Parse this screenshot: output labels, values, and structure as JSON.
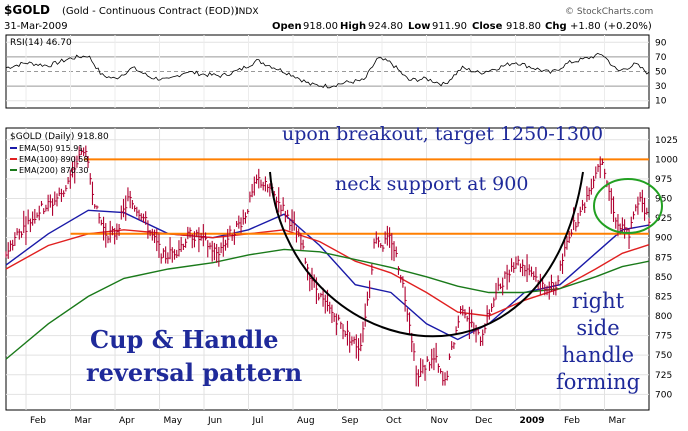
{
  "header": {
    "symbol": "$GOLD",
    "description": "(Gold - Continuous Contract (EOD))",
    "exchange": "INDX",
    "date": "31-Mar-2009",
    "open_label": "Open",
    "open": "918.00",
    "high_label": "High",
    "high": "924.80",
    "low_label": "Low",
    "low": "911.90",
    "close_label": "Close",
    "close": "918.80",
    "chg_label": "Chg",
    "chg": "+1.80 (+0.20%)",
    "watermark": "© StockCharts.com"
  },
  "rsi_panel": {
    "label": "RSI(14) 46.70",
    "ticks": [
      "90",
      "70",
      "50",
      "30",
      "10"
    ]
  },
  "price_panel": {
    "label": "$GOLD (Daily) 918.80",
    "ema": [
      {
        "label": "EMA(50) 915.91",
        "color": "#1a1aa8"
      },
      {
        "label": "EMA(100) 890.58",
        "color": "#e02020"
      },
      {
        "label": "EMA(200) 870.30",
        "color": "#1a7a1a"
      }
    ]
  },
  "annotations": {
    "target": "upon breakout, target 1250-1300",
    "neck": "neck support at 900",
    "pattern_line1": "Cup & Handle",
    "pattern_line2": "reversal pattern",
    "handle_lines": [
      "right",
      "side",
      "handle",
      "forming"
    ]
  },
  "colors": {
    "price_bars": "#b00030",
    "resistance_line": "#ff7f00",
    "annotation_text": "#1f2a9a",
    "handle_circle": "#22a022",
    "cup_curve": "#000000"
  },
  "chart_data": {
    "type": "line",
    "title": "$GOLD (Gold - Continuous Contract (EOD))",
    "x_ticks": [
      "Feb",
      "Mar",
      "Apr",
      "May",
      "Jun",
      "Jul",
      "Aug",
      "Sep",
      "Oct",
      "Nov",
      "Dec",
      "2009",
      "Feb",
      "Mar"
    ],
    "x_tick_month_index": [
      1,
      2,
      3,
      4,
      5,
      6,
      7,
      8,
      9,
      10,
      11,
      12,
      13,
      14
    ],
    "x_range_months": [
      0.55,
      15.0
    ],
    "y_ticks": [
      700,
      725,
      750,
      775,
      800,
      825,
      850,
      875,
      900,
      925,
      950,
      975,
      1000,
      1025
    ],
    "ylim": [
      680,
      1040
    ],
    "price_points": [
      {
        "m": 0.55,
        "v": 880
      },
      {
        "m": 0.8,
        "v": 905
      },
      {
        "m": 1.0,
        "v": 915
      },
      {
        "m": 1.3,
        "v": 935
      },
      {
        "m": 1.6,
        "v": 945
      },
      {
        "m": 1.85,
        "v": 960
      },
      {
        "m": 2.1,
        "v": 990
      },
      {
        "m": 2.3,
        "v": 1015
      },
      {
        "m": 2.45,
        "v": 975
      },
      {
        "m": 2.6,
        "v": 930
      },
      {
        "m": 2.8,
        "v": 905
      },
      {
        "m": 3.0,
        "v": 905
      },
      {
        "m": 3.3,
        "v": 950
      },
      {
        "m": 3.6,
        "v": 930
      },
      {
        "m": 3.85,
        "v": 900
      },
      {
        "m": 4.1,
        "v": 875
      },
      {
        "m": 4.4,
        "v": 885
      },
      {
        "m": 4.7,
        "v": 905
      },
      {
        "m": 5.0,
        "v": 895
      },
      {
        "m": 5.3,
        "v": 880
      },
      {
        "m": 5.6,
        "v": 905
      },
      {
        "m": 5.9,
        "v": 925
      },
      {
        "m": 6.2,
        "v": 975
      },
      {
        "m": 6.5,
        "v": 960
      },
      {
        "m": 6.8,
        "v": 935
      },
      {
        "m": 7.1,
        "v": 905
      },
      {
        "m": 7.4,
        "v": 850
      },
      {
        "m": 7.7,
        "v": 815
      },
      {
        "m": 8.0,
        "v": 795
      },
      {
        "m": 8.3,
        "v": 770
      },
      {
        "m": 8.5,
        "v": 760
      },
      {
        "m": 8.7,
        "v": 830
      },
      {
        "m": 8.85,
        "v": 905
      },
      {
        "m": 9.0,
        "v": 890
      },
      {
        "m": 9.2,
        "v": 900
      },
      {
        "m": 9.4,
        "v": 860
      },
      {
        "m": 9.6,
        "v": 800
      },
      {
        "m": 9.8,
        "v": 720
      },
      {
        "m": 10.0,
        "v": 740
      },
      {
        "m": 10.2,
        "v": 745
      },
      {
        "m": 10.4,
        "v": 710
      },
      {
        "m": 10.6,
        "v": 765
      },
      {
        "m": 10.8,
        "v": 815
      },
      {
        "m": 11.0,
        "v": 790
      },
      {
        "m": 11.2,
        "v": 770
      },
      {
        "m": 11.5,
        "v": 820
      },
      {
        "m": 11.8,
        "v": 855
      },
      {
        "m": 12.0,
        "v": 870
      },
      {
        "m": 12.3,
        "v": 860
      },
      {
        "m": 12.6,
        "v": 840
      },
      {
        "m": 12.9,
        "v": 835
      },
      {
        "m": 13.2,
        "v": 905
      },
      {
        "m": 13.5,
        "v": 935
      },
      {
        "m": 13.8,
        "v": 985
      },
      {
        "m": 13.95,
        "v": 1003
      },
      {
        "m": 14.1,
        "v": 960
      },
      {
        "m": 14.3,
        "v": 915
      },
      {
        "m": 14.55,
        "v": 905
      },
      {
        "m": 14.8,
        "v": 955
      },
      {
        "m": 15.0,
        "v": 919
      }
    ],
    "series": [
      {
        "name": "EMA(50) 915.91",
        "points": [
          {
            "m": 0.55,
            "v": 865
          },
          {
            "m": 1.5,
            "v": 905
          },
          {
            "m": 2.4,
            "v": 935
          },
          {
            "m": 3.2,
            "v": 932
          },
          {
            "m": 4.2,
            "v": 905
          },
          {
            "m": 5.2,
            "v": 900
          },
          {
            "m": 6.0,
            "v": 910
          },
          {
            "m": 6.8,
            "v": 930
          },
          {
            "m": 7.6,
            "v": 890
          },
          {
            "m": 8.4,
            "v": 840
          },
          {
            "m": 9.2,
            "v": 830
          },
          {
            "m": 10.0,
            "v": 790
          },
          {
            "m": 10.7,
            "v": 770
          },
          {
            "m": 11.4,
            "v": 790
          },
          {
            "m": 12.2,
            "v": 830
          },
          {
            "m": 13.0,
            "v": 840
          },
          {
            "m": 13.8,
            "v": 880
          },
          {
            "m": 14.4,
            "v": 910
          },
          {
            "m": 15.0,
            "v": 916
          }
        ]
      },
      {
        "name": "EMA(100) 890.58",
        "points": [
          {
            "m": 0.55,
            "v": 860
          },
          {
            "m": 1.5,
            "v": 890
          },
          {
            "m": 2.4,
            "v": 905
          },
          {
            "m": 3.2,
            "v": 910
          },
          {
            "m": 4.2,
            "v": 905
          },
          {
            "m": 5.2,
            "v": 900
          },
          {
            "m": 6.0,
            "v": 905
          },
          {
            "m": 6.8,
            "v": 910
          },
          {
            "m": 7.6,
            "v": 895
          },
          {
            "m": 8.4,
            "v": 870
          },
          {
            "m": 9.2,
            "v": 855
          },
          {
            "m": 10.0,
            "v": 830
          },
          {
            "m": 10.7,
            "v": 805
          },
          {
            "m": 11.4,
            "v": 800
          },
          {
            "m": 12.2,
            "v": 820
          },
          {
            "m": 13.0,
            "v": 835
          },
          {
            "m": 13.8,
            "v": 860
          },
          {
            "m": 14.4,
            "v": 880
          },
          {
            "m": 15.0,
            "v": 891
          }
        ]
      },
      {
        "name": "EMA(200) 870.30",
        "points": [
          {
            "m": 0.55,
            "v": 745
          },
          {
            "m": 1.5,
            "v": 790
          },
          {
            "m": 2.4,
            "v": 825
          },
          {
            "m": 3.2,
            "v": 848
          },
          {
            "m": 4.2,
            "v": 860
          },
          {
            "m": 5.2,
            "v": 868
          },
          {
            "m": 6.0,
            "v": 878
          },
          {
            "m": 6.8,
            "v": 885
          },
          {
            "m": 7.6,
            "v": 882
          },
          {
            "m": 8.4,
            "v": 872
          },
          {
            "m": 9.2,
            "v": 862
          },
          {
            "m": 10.0,
            "v": 850
          },
          {
            "m": 10.7,
            "v": 838
          },
          {
            "m": 11.4,
            "v": 830
          },
          {
            "m": 12.2,
            "v": 830
          },
          {
            "m": 13.0,
            "v": 835
          },
          {
            "m": 13.8,
            "v": 850
          },
          {
            "m": 14.4,
            "v": 863
          },
          {
            "m": 15.0,
            "v": 870
          }
        ]
      }
    ],
    "horizontal_lines": [
      {
        "value": 1000,
        "from_m": 2.3,
        "to_m": 15.0
      },
      {
        "value": 905,
        "from_m": 2.0,
        "to_m": 15.0
      }
    ],
    "rsi": {
      "ylim": [
        0,
        100
      ],
      "y_ticks": [
        90,
        70,
        50,
        30,
        10
      ],
      "values": [
        {
          "m": 0.55,
          "v": 55
        },
        {
          "m": 1.0,
          "v": 62
        },
        {
          "m": 1.5,
          "v": 58
        },
        {
          "m": 2.0,
          "v": 68
        },
        {
          "m": 2.4,
          "v": 72
        },
        {
          "m": 2.7,
          "v": 45
        },
        {
          "m": 3.0,
          "v": 40
        },
        {
          "m": 3.4,
          "v": 55
        },
        {
          "m": 3.8,
          "v": 42
        },
        {
          "m": 4.2,
          "v": 38
        },
        {
          "m": 4.6,
          "v": 50
        },
        {
          "m": 5.0,
          "v": 46
        },
        {
          "m": 5.4,
          "v": 44
        },
        {
          "m": 5.8,
          "v": 52
        },
        {
          "m": 6.2,
          "v": 65
        },
        {
          "m": 6.6,
          "v": 55
        },
        {
          "m": 7.0,
          "v": 45
        },
        {
          "m": 7.4,
          "v": 32
        },
        {
          "m": 7.8,
          "v": 30
        },
        {
          "m": 8.2,
          "v": 35
        },
        {
          "m": 8.6,
          "v": 38
        },
        {
          "m": 8.9,
          "v": 68
        },
        {
          "m": 9.2,
          "v": 62
        },
        {
          "m": 9.6,
          "v": 38
        },
        {
          "m": 10.0,
          "v": 40
        },
        {
          "m": 10.4,
          "v": 32
        },
        {
          "m": 10.8,
          "v": 55
        },
        {
          "m": 11.2,
          "v": 48
        },
        {
          "m": 11.6,
          "v": 55
        },
        {
          "m": 12.0,
          "v": 63
        },
        {
          "m": 12.4,
          "v": 55
        },
        {
          "m": 12.8,
          "v": 48
        },
        {
          "m": 13.2,
          "v": 62
        },
        {
          "m": 13.6,
          "v": 68
        },
        {
          "m": 13.95,
          "v": 74
        },
        {
          "m": 14.3,
          "v": 50
        },
        {
          "m": 14.7,
          "v": 60
        },
        {
          "m": 15.0,
          "v": 47
        }
      ]
    }
  }
}
